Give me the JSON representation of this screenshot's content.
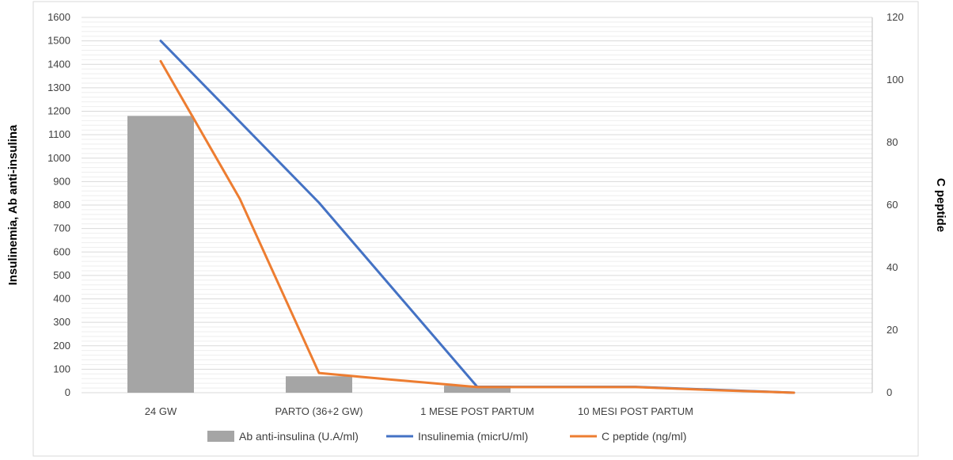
{
  "chart_data": {
    "type": "bar",
    "categories": [
      "24 GW",
      "PARTO (36+2 GW)",
      "1 MESE POST PARTUM",
      "10 MESI POST PARTUM"
    ],
    "y_left_label": "Insulinemia, Ab anti-insulina",
    "y_right_label": "C peptide",
    "y_left_range": [
      0,
      1600
    ],
    "y_left_ticks": [
      "0",
      "100",
      "200",
      "300",
      "400",
      "500",
      "600",
      "700",
      "800",
      "900",
      "1000",
      "1100",
      "1200",
      "1300",
      "1400",
      "1500",
      "1600"
    ],
    "y_right_range": [
      0,
      120
    ],
    "y_right_ticks": [
      "0",
      "20",
      "40",
      "60",
      "80",
      "100",
      "120"
    ],
    "grid": true,
    "legend_position": "bottom",
    "series": [
      {
        "name": "Ab anti-insulina (U.A/ml)",
        "kind": "bar",
        "axis": "left",
        "color": "#A5A5A5",
        "points": [
          [
            0,
            1180
          ],
          [
            1,
            70
          ],
          [
            2,
            30
          ]
        ]
      },
      {
        "name": "Insulinemia (micrU/ml)",
        "kind": "line",
        "axis": "left",
        "color": "#4472C4",
        "points": [
          [
            0,
            1500
          ],
          [
            1,
            810
          ],
          [
            2,
            25
          ],
          [
            3,
            25
          ],
          [
            4,
            0
          ]
        ]
      },
      {
        "name": "C peptide (ng/ml)",
        "kind": "line",
        "axis": "right",
        "color": "#ED7D31",
        "points": [
          [
            0,
            106
          ],
          [
            0.5,
            62
          ],
          [
            1,
            6.3
          ],
          [
            1.5,
            4
          ],
          [
            2,
            1.8
          ],
          [
            3,
            1.8
          ],
          [
            3.5,
            0.8
          ],
          [
            4,
            0
          ]
        ]
      }
    ]
  }
}
